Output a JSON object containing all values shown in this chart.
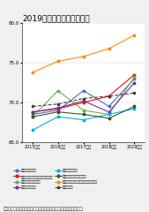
{
  "title": "2019年度　第６回調査結果",
  "title_fontsize": 6.5,
  "background_color": "#f0f0f0",
  "plot_bg_color": "#ffffff",
  "x_labels": [
    "2015年度",
    "2016年度",
    "2017年度",
    "2018年度",
    "2019年度"
  ],
  "x_values": [
    0,
    1,
    2,
    3,
    4
  ],
  "ylim": [
    65.0,
    80.0
  ],
  "yticks": [
    65.0,
    70.0,
    75.0,
    80.0
  ],
  "series": [
    {
      "label": "家電量販店平均",
      "color": "#4472C4",
      "marker": "o",
      "linestyle": "-",
      "values": [
        68.5,
        69.0,
        71.5,
        69.5,
        73.0
      ]
    },
    {
      "label": "生活用品店/ホームセンター平均",
      "color": "#FF0000",
      "marker": "o",
      "linestyle": "-",
      "values": [
        68.8,
        69.2,
        70.0,
        70.8,
        73.5
      ]
    },
    {
      "label": "ドラッグストア平均",
      "color": "#70AD47",
      "marker": "o",
      "linestyle": "-",
      "values": [
        68.2,
        71.5,
        69.0,
        68.5,
        73.2
      ]
    },
    {
      "label": "各種専門店平均",
      "color": "#7030A0",
      "marker": "o",
      "linestyle": "-",
      "values": [
        68.8,
        69.3,
        70.2,
        68.8,
        72.5
      ]
    },
    {
      "label": "近距離通信平均",
      "color": "#00B0F0",
      "marker": "o",
      "linestyle": "-",
      "values": [
        66.5,
        68.2,
        67.8,
        68.5,
        69.2
      ]
    },
    {
      "label": "フィットネスクラブ平均",
      "color": "#375623",
      "marker": "o",
      "linestyle": "-",
      "values": [
        68.2,
        68.8,
        68.5,
        68.0,
        69.5
      ]
    },
    {
      "label": "位置情報サービス（特別調査）平均",
      "color": "#FF8C00",
      "marker": "o",
      "linestyle": "-",
      "values": [
        73.8,
        75.2,
        75.8,
        76.8,
        78.5
      ]
    },
    {
      "label": "全業種平均",
      "color": "#404040",
      "marker": "s",
      "linestyle": "--",
      "values": [
        69.5,
        69.8,
        70.5,
        70.8,
        71.2
      ]
    }
  ],
  "footer": "各業種の平均には、ランキング対象外調査企業の結果も含みます",
  "footer_fontsize": 3.8
}
